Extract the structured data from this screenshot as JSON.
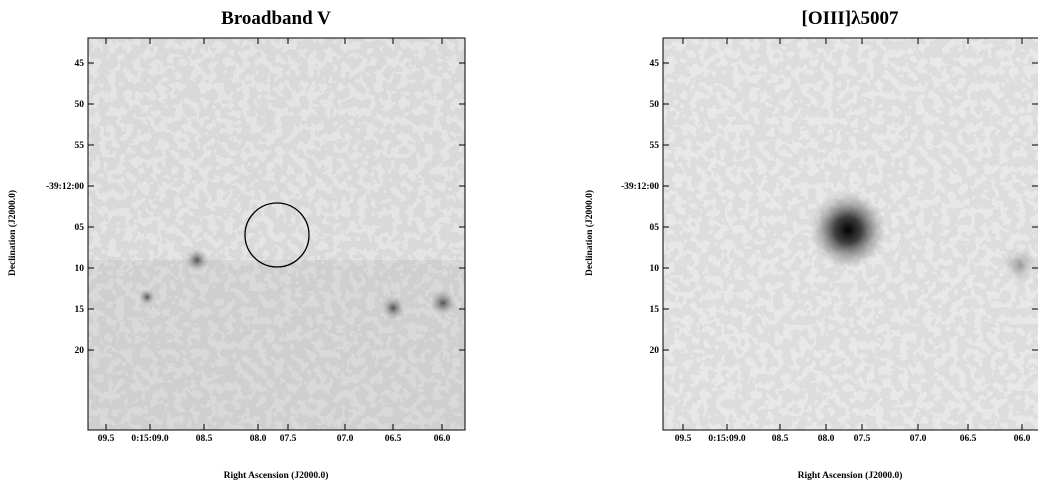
{
  "panels": [
    {
      "title": "Broadband V",
      "x_label": "Right Ascension (J2000.0)",
      "y_label": "Declination (J2000.0)",
      "x_ticks": [
        "09.5",
        "0:15:09.0",
        "08.5",
        "08.0",
        "07.5",
        "07.0",
        "06.5",
        "06.0"
      ],
      "y_ticks": [
        "45",
        "50",
        "55",
        "-39:12:00",
        "05",
        "10",
        "15",
        "20"
      ]
    },
    {
      "title": "[OIII]λ5007",
      "x_label": "Right Ascension (J2000.0)",
      "y_label": "Declination (J2000.0)",
      "x_ticks": [
        "09.5",
        "0:15:09.0",
        "08.5",
        "08.0",
        "07.5",
        "07.0",
        "06.5",
        "06.0"
      ],
      "y_ticks": [
        "45",
        "50",
        "55",
        "-39:12:00",
        "05",
        "10",
        "15",
        "20"
      ]
    }
  ]
}
